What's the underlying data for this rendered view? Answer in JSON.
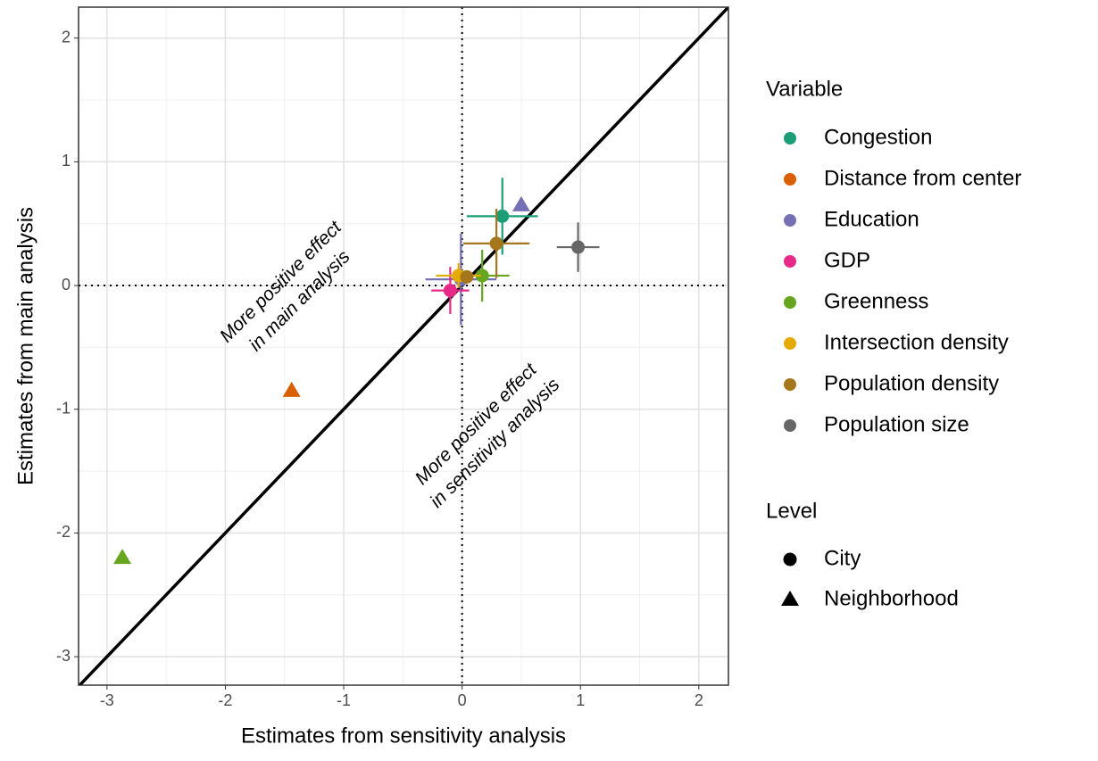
{
  "chart_data": {
    "type": "scatter",
    "x_label": "Estimates from sensitivity analysis",
    "y_label": "Estimates from main analysis",
    "xlim": [
      -3.24,
      2.25
    ],
    "ylim": [
      -3.23,
      2.25
    ],
    "xticks": [
      -3,
      -2,
      -1,
      0,
      1,
      2
    ],
    "yticks": [
      -3,
      -2,
      -1,
      0,
      1,
      2
    ],
    "grid": true,
    "identity_line": true,
    "reference_x": 0,
    "reference_y": 0,
    "legend_title": "Variable",
    "shape_legend": {
      "title": "Level",
      "items": [
        "City",
        "Neighborhood"
      ]
    },
    "series": [
      {
        "name": "Congestion",
        "color": "#1B9E77",
        "x": [
          0.34
        ],
        "values": [
          0.56
        ],
        "xerr": [
          0.3
        ],
        "yerr": [
          0.31
        ],
        "level": [
          "City"
        ]
      },
      {
        "name": "Distance from center",
        "color": "#D95F02",
        "x": [
          -1.44
        ],
        "values": [
          -0.85
        ],
        "xerr": [
          null
        ],
        "yerr": [
          null
        ],
        "level": [
          "Neighborhood"
        ]
      },
      {
        "name": "Education",
        "color": "#7570B3",
        "x": [
          0.5,
          -0.01
        ],
        "values": [
          0.65,
          0.05
        ],
        "xerr": [
          null,
          0.3
        ],
        "yerr": [
          null,
          0.37
        ],
        "level": [
          "Neighborhood",
          "City"
        ]
      },
      {
        "name": "GDP",
        "color": "#E7298A",
        "x": [
          -0.1
        ],
        "values": [
          -0.04
        ],
        "xerr": [
          0.16
        ],
        "yerr": [
          0.19
        ],
        "level": [
          "City"
        ]
      },
      {
        "name": "Greenness",
        "color": "#66A61E",
        "x": [
          0.17,
          -2.87
        ],
        "values": [
          0.08,
          -2.2
        ],
        "xerr": [
          0.23,
          null
        ],
        "yerr": [
          0.21,
          null
        ],
        "level": [
          "City",
          "Neighborhood"
        ]
      },
      {
        "name": "Intersection density",
        "color": "#E6AB02",
        "x": [
          -0.03
        ],
        "values": [
          0.08
        ],
        "xerr": [
          0.19
        ],
        "yerr": [
          0.1
        ],
        "level": [
          "City"
        ]
      },
      {
        "name": "Population density",
        "color": "#A6761D",
        "x": [
          0.29,
          0.04
        ],
        "values": [
          0.34,
          0.07
        ],
        "xerr": [
          0.28,
          null
        ],
        "yerr": [
          0.28,
          null
        ],
        "level": [
          "City",
          "City"
        ]
      },
      {
        "name": "Population size",
        "color": "#666666",
        "x": [
          0.98
        ],
        "values": [
          0.31
        ],
        "xerr": [
          0.18
        ],
        "yerr": [
          0.2
        ],
        "level": [
          "City"
        ]
      }
    ],
    "annotations": [
      {
        "lines": [
          "More positive effect",
          "in main analysis"
        ],
        "x": -1.45,
        "y": -0.05
      },
      {
        "lines": [
          "More positive effect",
          "in sensitivity analysis"
        ],
        "x": 0.2,
        "y": -1.2
      }
    ]
  }
}
